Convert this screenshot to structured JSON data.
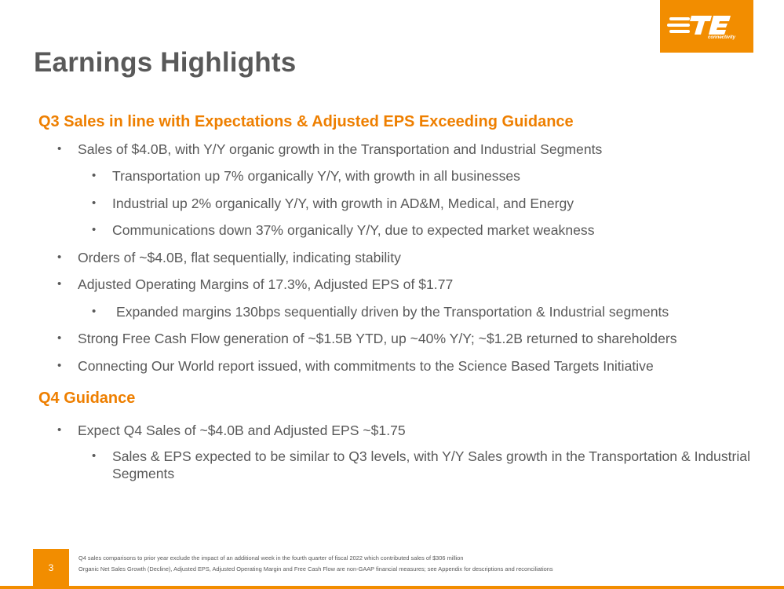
{
  "logo": {
    "text": "connectivity",
    "brand_color": "#f28d00",
    "icon": "te-logo-icon"
  },
  "title": "Earnings Highlights",
  "sections": [
    {
      "heading": "Q3 Sales in line with Expectations & Adjusted EPS Exceeding Guidance",
      "bullets": [
        "Sales of $4.0B, with Y/Y organic growth in the Transportation and Industrial Segments",
        "Transportation up 7% organically Y/Y, with growth in all businesses",
        "Industrial up 2% organically Y/Y, with growth in AD&M, Medical, and Energy",
        "Communications down 37% organically Y/Y, due to expected market weakness",
        "Orders of ~$4.0B, flat sequentially, indicating stability",
        "Adjusted Operating Margins of 17.3%, Adjusted EPS of $1.77",
        "Expanded margins 130bps sequentially driven by the Transportation & Industrial segments",
        "Strong Free Cash Flow generation of ~$1.5B YTD, up ~40% Y/Y; ~$1.2B returned to shareholders",
        "Connecting Our World report issued, with commitments to the Science Based Targets Initiative"
      ]
    },
    {
      "heading": "Q4 Guidance",
      "bullets": [
        "Expect Q4 Sales of ~$4.0B and Adjusted EPS ~$1.75",
        "Sales & EPS expected to be similar to Q3 levels, with Y/Y Sales growth in the Transportation & Industrial Segments"
      ]
    }
  ],
  "bullet_glyph": "•",
  "footer": {
    "page_number": "3",
    "notes": [
      "Q4 sales comparisons to prior year exclude the impact of an additional week in the fourth quarter of fiscal 2022 which contributed sales of $306 million",
      "Organic Net Sales Growth (Decline), Adjusted EPS, Adjusted Operating Margin and Free Cash Flow are non-GAAP financial measures; see Appendix for descriptions and reconciliations"
    ]
  },
  "accent_color": "#ee7f00",
  "text_color": "#595959"
}
